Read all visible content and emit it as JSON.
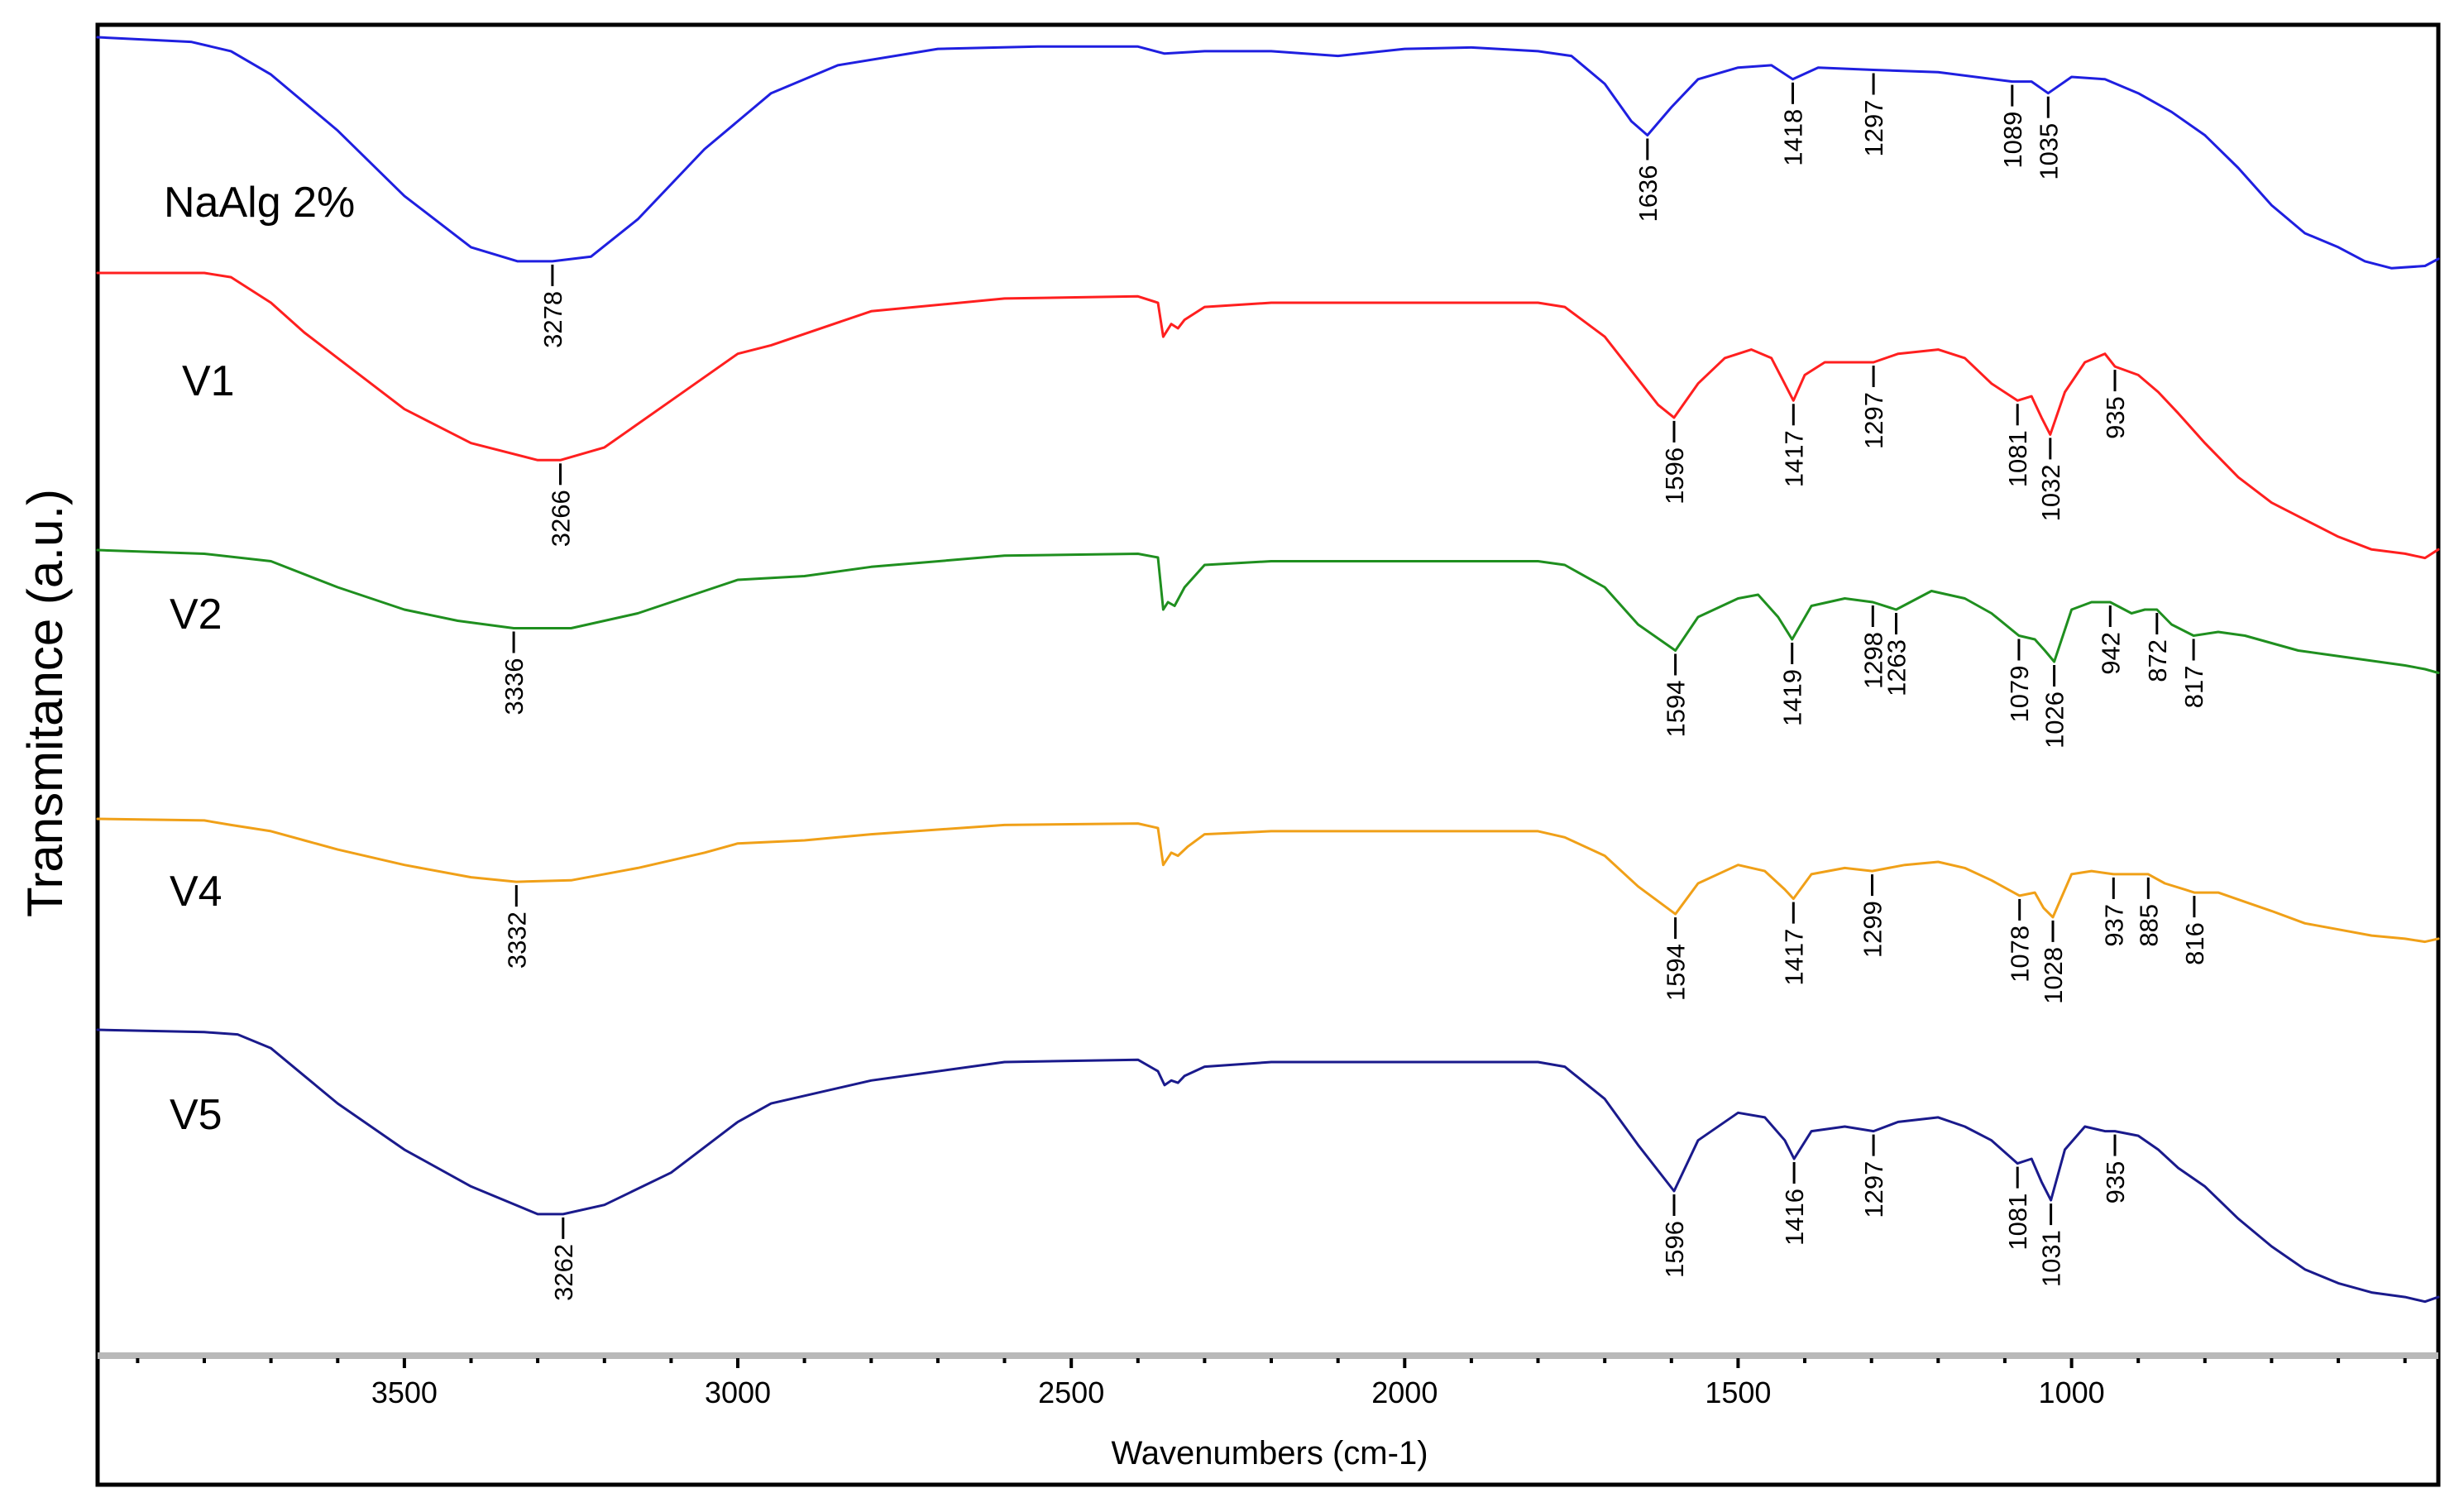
{
  "chart_data": {
    "type": "line",
    "title": "",
    "xlabel": "Wavenumbers (cm-1)",
    "ylabel": "Transmitance (a.u.)",
    "xlim": [
      3960,
      450
    ],
    "xticks": [
      3500,
      3000,
      2500,
      2000,
      1500,
      1000
    ],
    "xtick_labels": [
      "3500",
      "3000",
      "2500",
      "2000",
      "1500",
      "1000"
    ],
    "grid": false,
    "series": [
      {
        "name": "NaAlg 2%",
        "color": "#1f1fe0",
        "x": [
          3960,
          3820,
          3760,
          3700,
          3600,
          3500,
          3400,
          3330,
          3278,
          3220,
          3150,
          3050,
          2950,
          2850,
          2700,
          2550,
          2400,
          2360,
          2300,
          2200,
          2100,
          2000,
          1900,
          1800,
          1750,
          1700,
          1660,
          1636,
          1600,
          1560,
          1500,
          1450,
          1418,
          1380,
          1297,
          1200,
          1089,
          1060,
          1035,
          1000,
          950,
          900,
          850,
          800,
          750,
          700,
          650,
          600,
          560,
          520,
          470,
          450
        ],
        "y": [
          100,
          99,
          97,
          92,
          80,
          66,
          55,
          52,
          52,
          53,
          61,
          76,
          88,
          94,
          97.5,
          98,
          98,
          96.5,
          97,
          97,
          96,
          97.5,
          97.8,
          97,
          96,
          90,
          82,
          79,
          85,
          91,
          93.5,
          94,
          91,
          93.5,
          93,
          92.5,
          90.5,
          90.5,
          88,
          91.5,
          91,
          88,
          84,
          79,
          72,
          64,
          58,
          55,
          52,
          50.5,
          51,
          52.5
        ],
        "peaks": [
          {
            "wavenumber": 3278,
            "label": "3278"
          },
          {
            "wavenumber": 1636,
            "label": "1636"
          },
          {
            "wavenumber": 1418,
            "label": "1418"
          },
          {
            "wavenumber": 1297,
            "label": "1297"
          },
          {
            "wavenumber": 1089,
            "label": "1089"
          },
          {
            "wavenumber": 1035,
            "label": "1035"
          }
        ]
      },
      {
        "name": "V1",
        "color": "#ff1f1f",
        "x": [
          3960,
          3800,
          3760,
          3700,
          3650,
          3600,
          3500,
          3400,
          3300,
          3266,
          3200,
          3100,
          3000,
          2950,
          2800,
          2600,
          2400,
          2370,
          2362,
          2350,
          2340,
          2330,
          2300,
          2200,
          2000,
          1800,
          1760,
          1700,
          1650,
          1620,
          1596,
          1560,
          1520,
          1480,
          1450,
          1417,
          1400,
          1370,
          1297,
          1260,
          1200,
          1160,
          1120,
          1081,
          1060,
          1045,
          1032,
          1010,
          980,
          950,
          935,
          900,
          870,
          840,
          800,
          750,
          700,
          650,
          600,
          550,
          500,
          470,
          450
        ],
        "y": [
          100,
          100,
          99,
          93,
          86,
          80,
          68,
          60,
          56,
          56,
          59,
          70,
          81,
          83,
          91,
          94,
          94.5,
          93,
          85,
          88,
          87,
          89,
          92,
          93,
          93,
          93,
          92,
          85,
          75,
          69,
          66,
          74,
          80,
          82,
          80,
          70,
          76,
          79,
          79,
          81,
          82,
          80,
          74,
          70,
          71,
          66,
          62,
          72,
          79,
          81,
          78,
          76,
          72,
          67,
          60,
          52,
          46,
          42,
          38,
          35,
          34,
          33,
          35
        ],
        "peaks": [
          {
            "wavenumber": 3266,
            "label": "3266"
          },
          {
            "wavenumber": 1596,
            "label": "1596"
          },
          {
            "wavenumber": 1417,
            "label": "1417"
          },
          {
            "wavenumber": 1297,
            "label": "1297"
          },
          {
            "wavenumber": 1081,
            "label": "1081"
          },
          {
            "wavenumber": 1032,
            "label": "1032"
          },
          {
            "wavenumber": 935,
            "label": "935"
          }
        ]
      },
      {
        "name": "V2",
        "color": "#1f8f1f",
        "x": [
          3960,
          3800,
          3700,
          3600,
          3500,
          3420,
          3336,
          3250,
          3150,
          3050,
          3000,
          2900,
          2800,
          2600,
          2400,
          2370,
          2362,
          2355,
          2345,
          2330,
          2300,
          2200,
          2000,
          1800,
          1760,
          1700,
          1650,
          1594,
          1560,
          1500,
          1470,
          1440,
          1419,
          1390,
          1340,
          1298,
          1263,
          1210,
          1160,
          1120,
          1079,
          1055,
          1040,
          1026,
          1000,
          970,
          942,
          910,
          890,
          872,
          850,
          817,
          780,
          740,
          700,
          660,
          620,
          580,
          540,
          500,
          470,
          450
        ],
        "y": [
          100,
          99,
          97,
          90,
          84,
          81,
          79,
          79,
          83,
          89,
          92,
          93,
          95.5,
          98.5,
          99,
          98,
          84,
          86,
          85,
          90,
          96,
          97,
          97,
          97,
          96,
          90,
          80,
          73,
          82,
          87,
          88,
          82,
          76,
          85,
          87,
          86,
          84,
          89,
          87,
          83,
          77,
          76,
          73,
          70,
          84,
          86,
          86,
          83,
          84,
          84,
          80,
          77,
          78,
          77,
          75,
          73,
          72,
          71,
          70,
          69,
          68,
          67
        ],
        "peaks": [
          {
            "wavenumber": 3336,
            "label": "3336"
          },
          {
            "wavenumber": 1594,
            "label": "1594"
          },
          {
            "wavenumber": 1419,
            "label": "1419"
          },
          {
            "wavenumber": 1298,
            "label": "1298"
          },
          {
            "wavenumber": 1263,
            "label": "1263"
          },
          {
            "wavenumber": 1079,
            "label": "1079"
          },
          {
            "wavenumber": 1026,
            "label": "1026"
          },
          {
            "wavenumber": 942,
            "label": "942"
          },
          {
            "wavenumber": 872,
            "label": "872"
          },
          {
            "wavenumber": 817,
            "label": "817"
          }
        ]
      },
      {
        "name": "V4",
        "color": "#f0a018",
        "x": [
          3960,
          3800,
          3760,
          3700,
          3650,
          3600,
          3500,
          3400,
          3332,
          3250,
          3150,
          3050,
          3000,
          2900,
          2800,
          2600,
          2400,
          2370,
          2362,
          2350,
          2340,
          2325,
          2300,
          2200,
          2000,
          1800,
          1760,
          1700,
          1650,
          1594,
          1560,
          1500,
          1460,
          1430,
          1417,
          1390,
          1340,
          1299,
          1250,
          1200,
          1160,
          1120,
          1078,
          1055,
          1042,
          1028,
          1000,
          970,
          937,
          910,
          885,
          860,
          830,
          816,
          780,
          740,
          700,
          650,
          600,
          550,
          500,
          470,
          450
        ],
        "y": [
          100,
          99.5,
          98,
          96,
          93,
          90,
          85,
          81,
          79.5,
          80,
          84,
          89,
          92,
          93,
          95,
          98,
          98.5,
          97,
          85,
          89,
          88,
          91,
          95,
          96,
          96,
          96,
          94,
          88,
          78,
          69,
          79,
          85,
          83,
          77,
          74,
          82,
          84,
          83,
          85,
          86,
          84,
          80,
          75,
          76,
          71,
          68,
          82,
          83,
          82,
          82,
          82,
          79,
          77,
          76,
          76,
          73,
          70,
          66,
          64,
          62,
          61,
          60,
          61
        ],
        "peaks": [
          {
            "wavenumber": 3332,
            "label": "3332"
          },
          {
            "wavenumber": 1594,
            "label": "1594"
          },
          {
            "wavenumber": 1417,
            "label": "1417"
          },
          {
            "wavenumber": 1299,
            "label": "1299"
          },
          {
            "wavenumber": 1078,
            "label": "1078"
          },
          {
            "wavenumber": 1028,
            "label": "1028"
          },
          {
            "wavenumber": 937,
            "label": "937"
          },
          {
            "wavenumber": 885,
            "label": "885"
          },
          {
            "wavenumber": 816,
            "label": "816"
          }
        ]
      },
      {
        "name": "V5",
        "color": "#1a1a8c",
        "x": [
          3960,
          3800,
          3750,
          3700,
          3650,
          3600,
          3500,
          3400,
          3300,
          3262,
          3200,
          3100,
          3000,
          2950,
          2800,
          2600,
          2400,
          2370,
          2360,
          2350,
          2340,
          2330,
          2300,
          2200,
          2000,
          1800,
          1760,
          1700,
          1650,
          1596,
          1560,
          1500,
          1460,
          1430,
          1416,
          1390,
          1340,
          1297,
          1260,
          1200,
          1160,
          1120,
          1081,
          1060,
          1045,
          1031,
          1010,
          980,
          950,
          935,
          900,
          870,
          840,
          800,
          750,
          700,
          650,
          600,
          550,
          500,
          470,
          450
        ],
        "y": [
          100,
          99.5,
          99,
          96,
          90,
          84,
          74,
          66,
          60,
          60,
          62,
          69,
          80,
          84,
          89,
          93,
          93.5,
          91,
          88,
          89,
          88.5,
          90,
          92,
          93,
          93,
          93,
          92,
          85,
          75,
          65,
          76,
          82,
          81,
          76,
          72,
          78,
          79,
          78,
          80,
          81,
          79,
          76,
          71,
          72,
          67,
          63,
          74,
          79,
          78,
          78,
          77,
          74,
          70,
          66,
          59,
          53,
          48,
          45,
          43,
          42,
          41,
          42
        ],
        "peaks": [
          {
            "wavenumber": 3262,
            "label": "3262"
          },
          {
            "wavenumber": 1596,
            "label": "1596"
          },
          {
            "wavenumber": 1416,
            "label": "1416"
          },
          {
            "wavenumber": 1297,
            "label": "1297"
          },
          {
            "wavenumber": 1081,
            "label": "1081"
          },
          {
            "wavenumber": 1031,
            "label": "1031"
          },
          {
            "wavenumber": 935,
            "label": "935"
          }
        ]
      }
    ]
  }
}
